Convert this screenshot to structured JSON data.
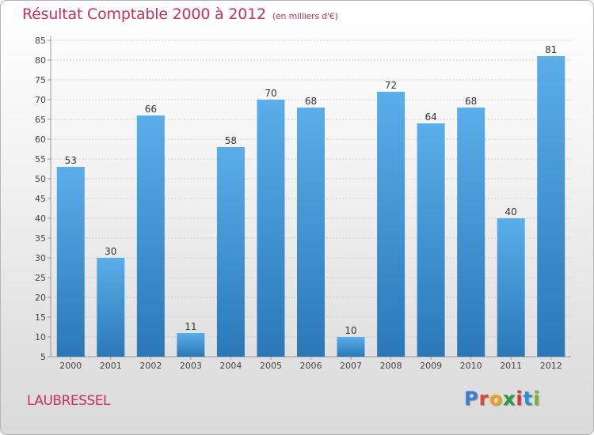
{
  "title": "Résultat Comptable 2000 à 2012",
  "subtitle": "(en milliers d'€)",
  "commune": "LAUBRESSEL",
  "logo": {
    "letters": [
      "P",
      "r",
      "o",
      "x",
      "i",
      "t",
      "i"
    ],
    "colors": [
      "#3a7fd0",
      "#e0472c",
      "#f1a21e",
      "#2b9a44",
      "#d8323a",
      "#2b8fd8",
      "#7bb52f"
    ]
  },
  "colors": {
    "bar": "#3f95d8",
    "bar_light": "#5aaeea",
    "bar_dark": "#2a78b8",
    "title": "#c8325a",
    "grid": "#cfcfcf"
  },
  "chart_data": {
    "type": "bar",
    "categories": [
      "2000",
      "2001",
      "2002",
      "2003",
      "2004",
      "2005",
      "2006",
      "2007",
      "2008",
      "2009",
      "2010",
      "2011",
      "2012"
    ],
    "values": [
      53,
      30,
      66,
      11,
      58,
      70,
      68,
      10,
      72,
      64,
      68,
      40,
      81
    ],
    "ylim": [
      5,
      85
    ],
    "yticks": [
      5,
      10,
      15,
      20,
      25,
      30,
      35,
      40,
      45,
      50,
      55,
      60,
      65,
      70,
      75,
      80,
      85
    ],
    "grid": true,
    "legend": "none"
  }
}
